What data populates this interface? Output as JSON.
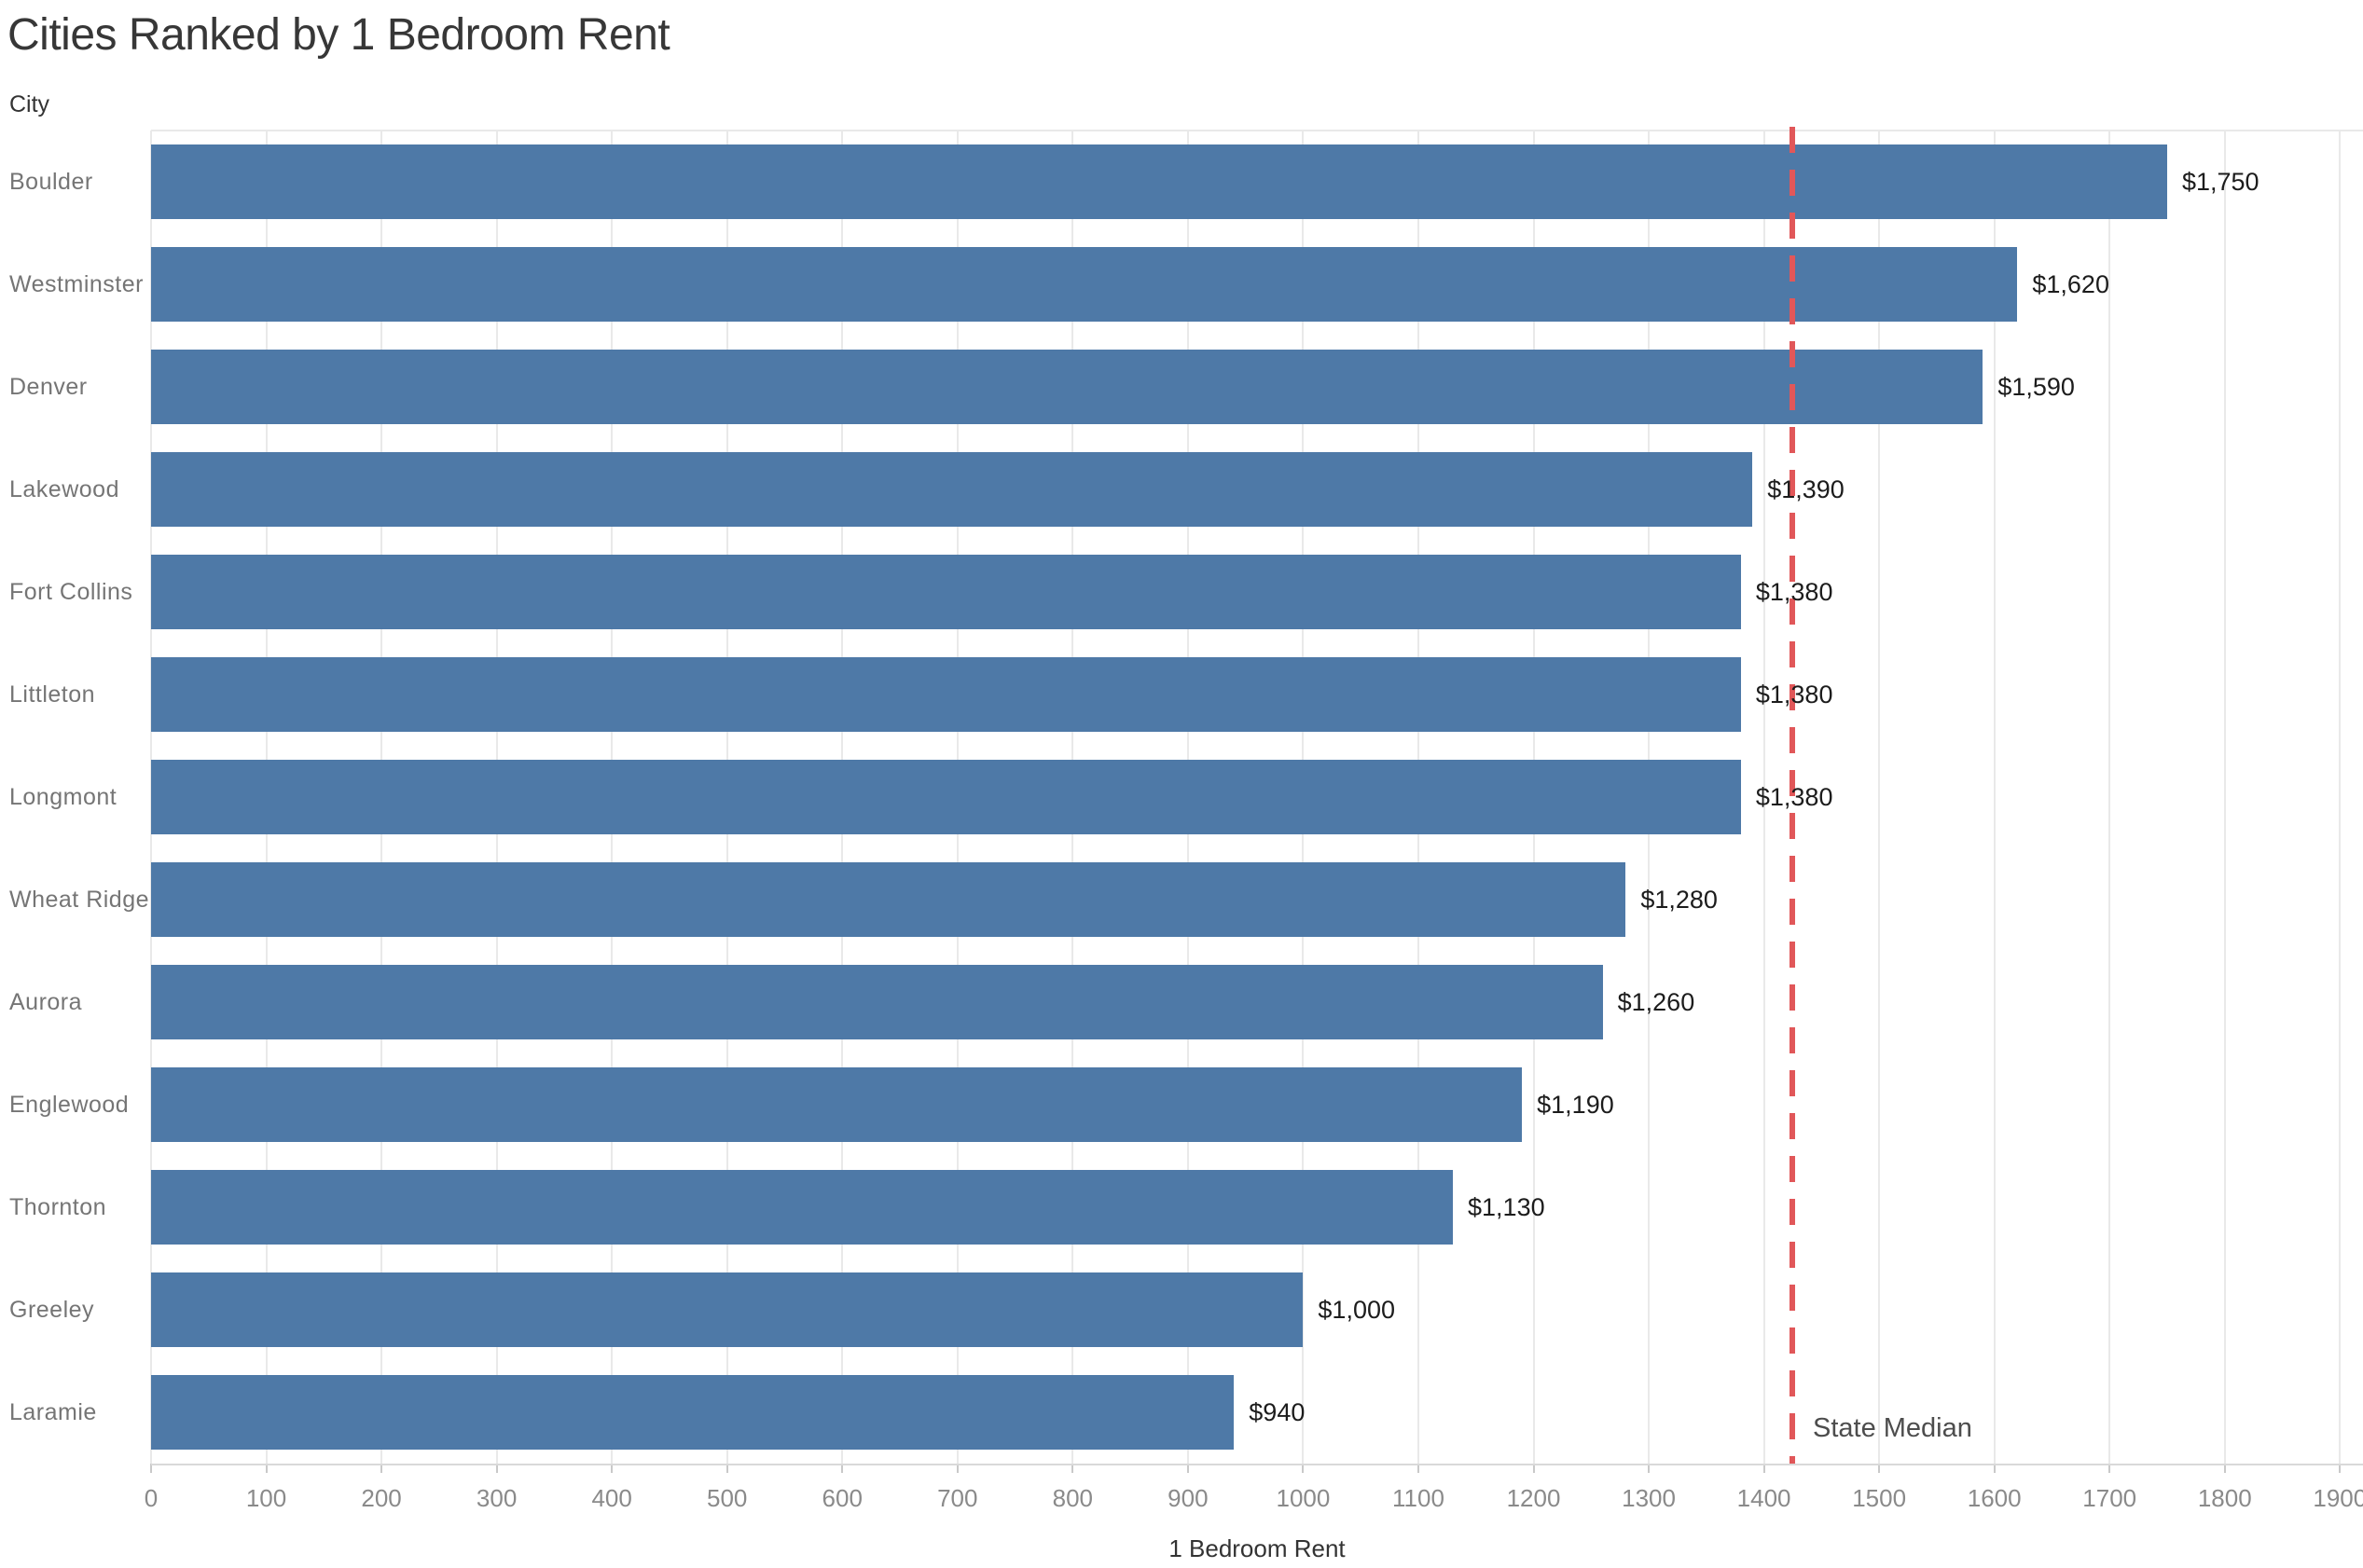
{
  "chart_data": {
    "type": "bar",
    "orientation": "horizontal",
    "title": "Cities Ranked by 1 Bedroom Rent",
    "category_axis_label": "City",
    "value_axis_label": "1 Bedroom Rent",
    "categories": [
      "Boulder",
      "Westminster",
      "Denver",
      "Lakewood",
      "Fort Collins",
      "Littleton",
      "Longmont",
      "Wheat Ridge",
      "Aurora",
      "Englewood",
      "Thornton",
      "Greeley",
      "Laramie"
    ],
    "values": [
      1750,
      1620,
      1590,
      1390,
      1380,
      1380,
      1380,
      1280,
      1260,
      1190,
      1130,
      1000,
      940
    ],
    "value_labels": [
      "$1,750",
      "$1,620",
      "$1,590",
      "$1,390",
      "$1,380",
      "$1,380",
      "$1,380",
      "$1,280",
      "$1,260",
      "$1,190",
      "$1,130",
      "$1,000",
      "$940"
    ],
    "x_ticks": [
      0,
      100,
      200,
      300,
      400,
      500,
      600,
      700,
      800,
      900,
      1000,
      1100,
      1200,
      1300,
      1400,
      1500,
      1600,
      1700,
      1800,
      1900
    ],
    "xlim": [
      0,
      1920
    ],
    "grid": "vertical",
    "legend": "none",
    "reference_line": {
      "label": "State Median",
      "value": 1425,
      "style": "dashed"
    },
    "colors": {
      "bar": "#4e79a7",
      "reference_line": "#e15759",
      "gridline": "#e9e9e9",
      "axis_line": "#d9d9d9",
      "tick_mark": "#c9c9c9",
      "title": "#373737",
      "category_label": "#757575",
      "tick_label": "#8a8a8a",
      "value_label": "#1c1c1c",
      "reference_label": "#4d4d4d"
    }
  }
}
